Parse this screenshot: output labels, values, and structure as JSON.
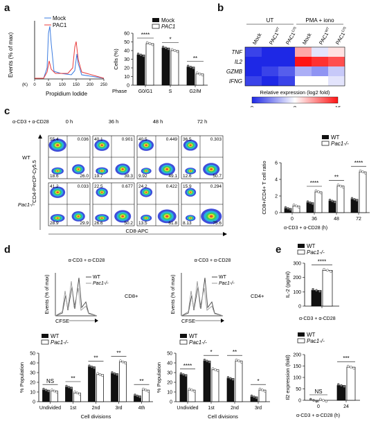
{
  "panels": {
    "a": "a",
    "b": "b",
    "c": "c",
    "d": "d",
    "e": "e"
  },
  "a": {
    "hist": {
      "legend": [
        "Mock",
        "PAC1"
      ],
      "colors": [
        "#3a7be0",
        "#e83a3a"
      ],
      "ylabel": "Events (% of max)",
      "xlabel": "Propidium Iodide",
      "xticks": [
        "0",
        "50",
        "100",
        "150",
        "200",
        "250"
      ],
      "xunit": "(K)"
    },
    "bar": {
      "legend": [
        "Mock",
        "PAC1"
      ],
      "ylabel": "Cells (%)",
      "xprefix": "Phase",
      "categories": [
        "G0/G1",
        "S",
        "G2/M"
      ],
      "yticks": [
        "0",
        "10",
        "20",
        "30",
        "40",
        "50",
        "60"
      ],
      "ylim": [
        0,
        60
      ],
      "mock": [
        35,
        43,
        21
      ],
      "pac1": [
        48,
        40,
        13
      ],
      "sig": [
        "****",
        "*",
        "**"
      ]
    }
  },
  "b": {
    "groups": [
      "UT",
      "PMA + iono"
    ],
    "cols": [
      "Mock",
      "PAC1WT",
      "PAC1C/S",
      "Mock",
      "PAC1WT",
      "PAC1C/S"
    ],
    "col_main": [
      "Mock",
      "PAC1",
      "PAC1",
      "Mock",
      "PAC1",
      "PAC1"
    ],
    "col_sup": [
      "",
      "WT",
      "C/S",
      "",
      "WT",
      "C/S"
    ],
    "rows": [
      "TNF",
      "IL2",
      "GZMB",
      "IFNG"
    ],
    "values": [
      [
        1,
        0,
        0,
        11,
        7,
        9
      ],
      [
        0,
        0,
        0,
        16,
        15,
        14
      ],
      [
        0,
        1,
        2,
        5,
        4,
        6
      ],
      [
        1,
        0,
        1,
        8,
        8,
        7
      ]
    ],
    "cbar_label": "Relative expression (log2 fold)",
    "cbar_ticks": [
      "0",
      "8",
      "16"
    ]
  },
  "c": {
    "stim": "α-CD3 + α-CD28",
    "times": [
      "0 h",
      "36 h",
      "48 h",
      "72 h"
    ],
    "rows": [
      "WT",
      "Pac1-/-"
    ],
    "ylabel": "CD4-PerCP-Cy5.5",
    "xlabel": "CD8-APC",
    "quads": [
      [
        [
          "55.4",
          "0.036",
          "18.6",
          "26.0"
        ],
        [
          "40.1",
          "0.901",
          "19.7",
          "39.3"
        ],
        [
          "40.5",
          "0.449",
          "9.92",
          "49.1"
        ],
        [
          "36.5",
          "0.303",
          "12.6",
          "50.7"
        ]
      ],
      [
        [
          "41.2",
          "0.033",
          "28.9",
          "29.9"
        ],
        [
          "22.5",
          "0.677",
          "26.6",
          "50.2"
        ],
        [
          "24.2",
          "0.422",
          "13.5",
          "61.8"
        ],
        [
          "15.9",
          "0.294",
          "8.13",
          "75.6"
        ]
      ]
    ],
    "bar": {
      "legend": [
        "WT",
        "Pac1-/-"
      ],
      "ylabel": "CD8+/CD4+ T cell ratio",
      "xlabel": "α-CD3 + α-CD28 (h)",
      "categories": [
        "0",
        "36",
        "48",
        "72"
      ],
      "yticks": [
        "0",
        "2",
        "4",
        "6"
      ],
      "ylim": [
        0,
        6
      ],
      "wt": [
        0.5,
        1.2,
        1.4,
        1.6
      ],
      "ko": [
        0.8,
        2.5,
        3.2,
        4.9
      ],
      "sig": [
        "",
        "****",
        "**",
        "****"
      ]
    }
  },
  "d": {
    "left": {
      "stim": "α-CD3 + α-CD28",
      "legend": [
        "WT",
        "Pac1-/-"
      ],
      "cell": "CD8+",
      "ylabel": "Events (% of max)",
      "xlabel": "CFSE",
      "bar": {
        "legend": [
          "WT",
          "Pac1-/-"
        ],
        "ylabel": "% Population",
        "xlabel": "Cell divisions",
        "categories": [
          "Undivided",
          "1st",
          "2nd",
          "3rd",
          "4th"
        ],
        "yticks": [
          "0",
          "10",
          "20",
          "30",
          "40",
          "50"
        ],
        "ylim": [
          0,
          50
        ],
        "wt": [
          12,
          15,
          36,
          29,
          6
        ],
        "ko": [
          11,
          9,
          28,
          41,
          12
        ],
        "sig": [
          "NS",
          "**",
          "**",
          "**",
          "**"
        ]
      }
    },
    "right": {
      "stim": "α-CD3 + α-CD28",
      "legend": [
        "WT",
        "Pac1-/-"
      ],
      "cell": "CD4+",
      "ylabel": "Events (% of max)",
      "xlabel": "CFSE",
      "bar": {
        "legend": [
          "WT",
          "Pac1-/-"
        ],
        "ylabel": "% Population",
        "xlabel": "Cell divisions",
        "categories": [
          "Undivided",
          "1st",
          "2nd",
          "3rd"
        ],
        "yticks": [
          "0",
          "10",
          "20",
          "30",
          "40",
          "50"
        ],
        "ylim": [
          0,
          50
        ],
        "wt": [
          28,
          42,
          24,
          5
        ],
        "ko": [
          12,
          33,
          42,
          12
        ],
        "sig": [
          "****",
          "*",
          "**",
          "*"
        ]
      }
    }
  },
  "e": {
    "top": {
      "legend": [
        "WT",
        "Pac1-/-"
      ],
      "ylabel": "IL-2 (pg/ml)",
      "xlabel": "α-CD3 + α-CD28",
      "yticks": [
        "0",
        "100",
        "200",
        "300"
      ],
      "ylim": [
        0,
        300
      ],
      "wt": 110,
      "ko": 250,
      "sig": "****"
    },
    "bottom": {
      "legend": [
        "WT",
        "Pac1-/-"
      ],
      "ylabel": "Il2 expression (fold)",
      "xlabel": "α-CD3 + α-CD28 (h)",
      "categories": [
        "0",
        "24"
      ],
      "yticks": [
        "0",
        "50",
        "100",
        "150",
        "200"
      ],
      "ylim": [
        0,
        200
      ],
      "wt": [
        0,
        65
      ],
      "ko": [
        0,
        145
      ],
      "sig": [
        "NS",
        "***"
      ]
    }
  }
}
